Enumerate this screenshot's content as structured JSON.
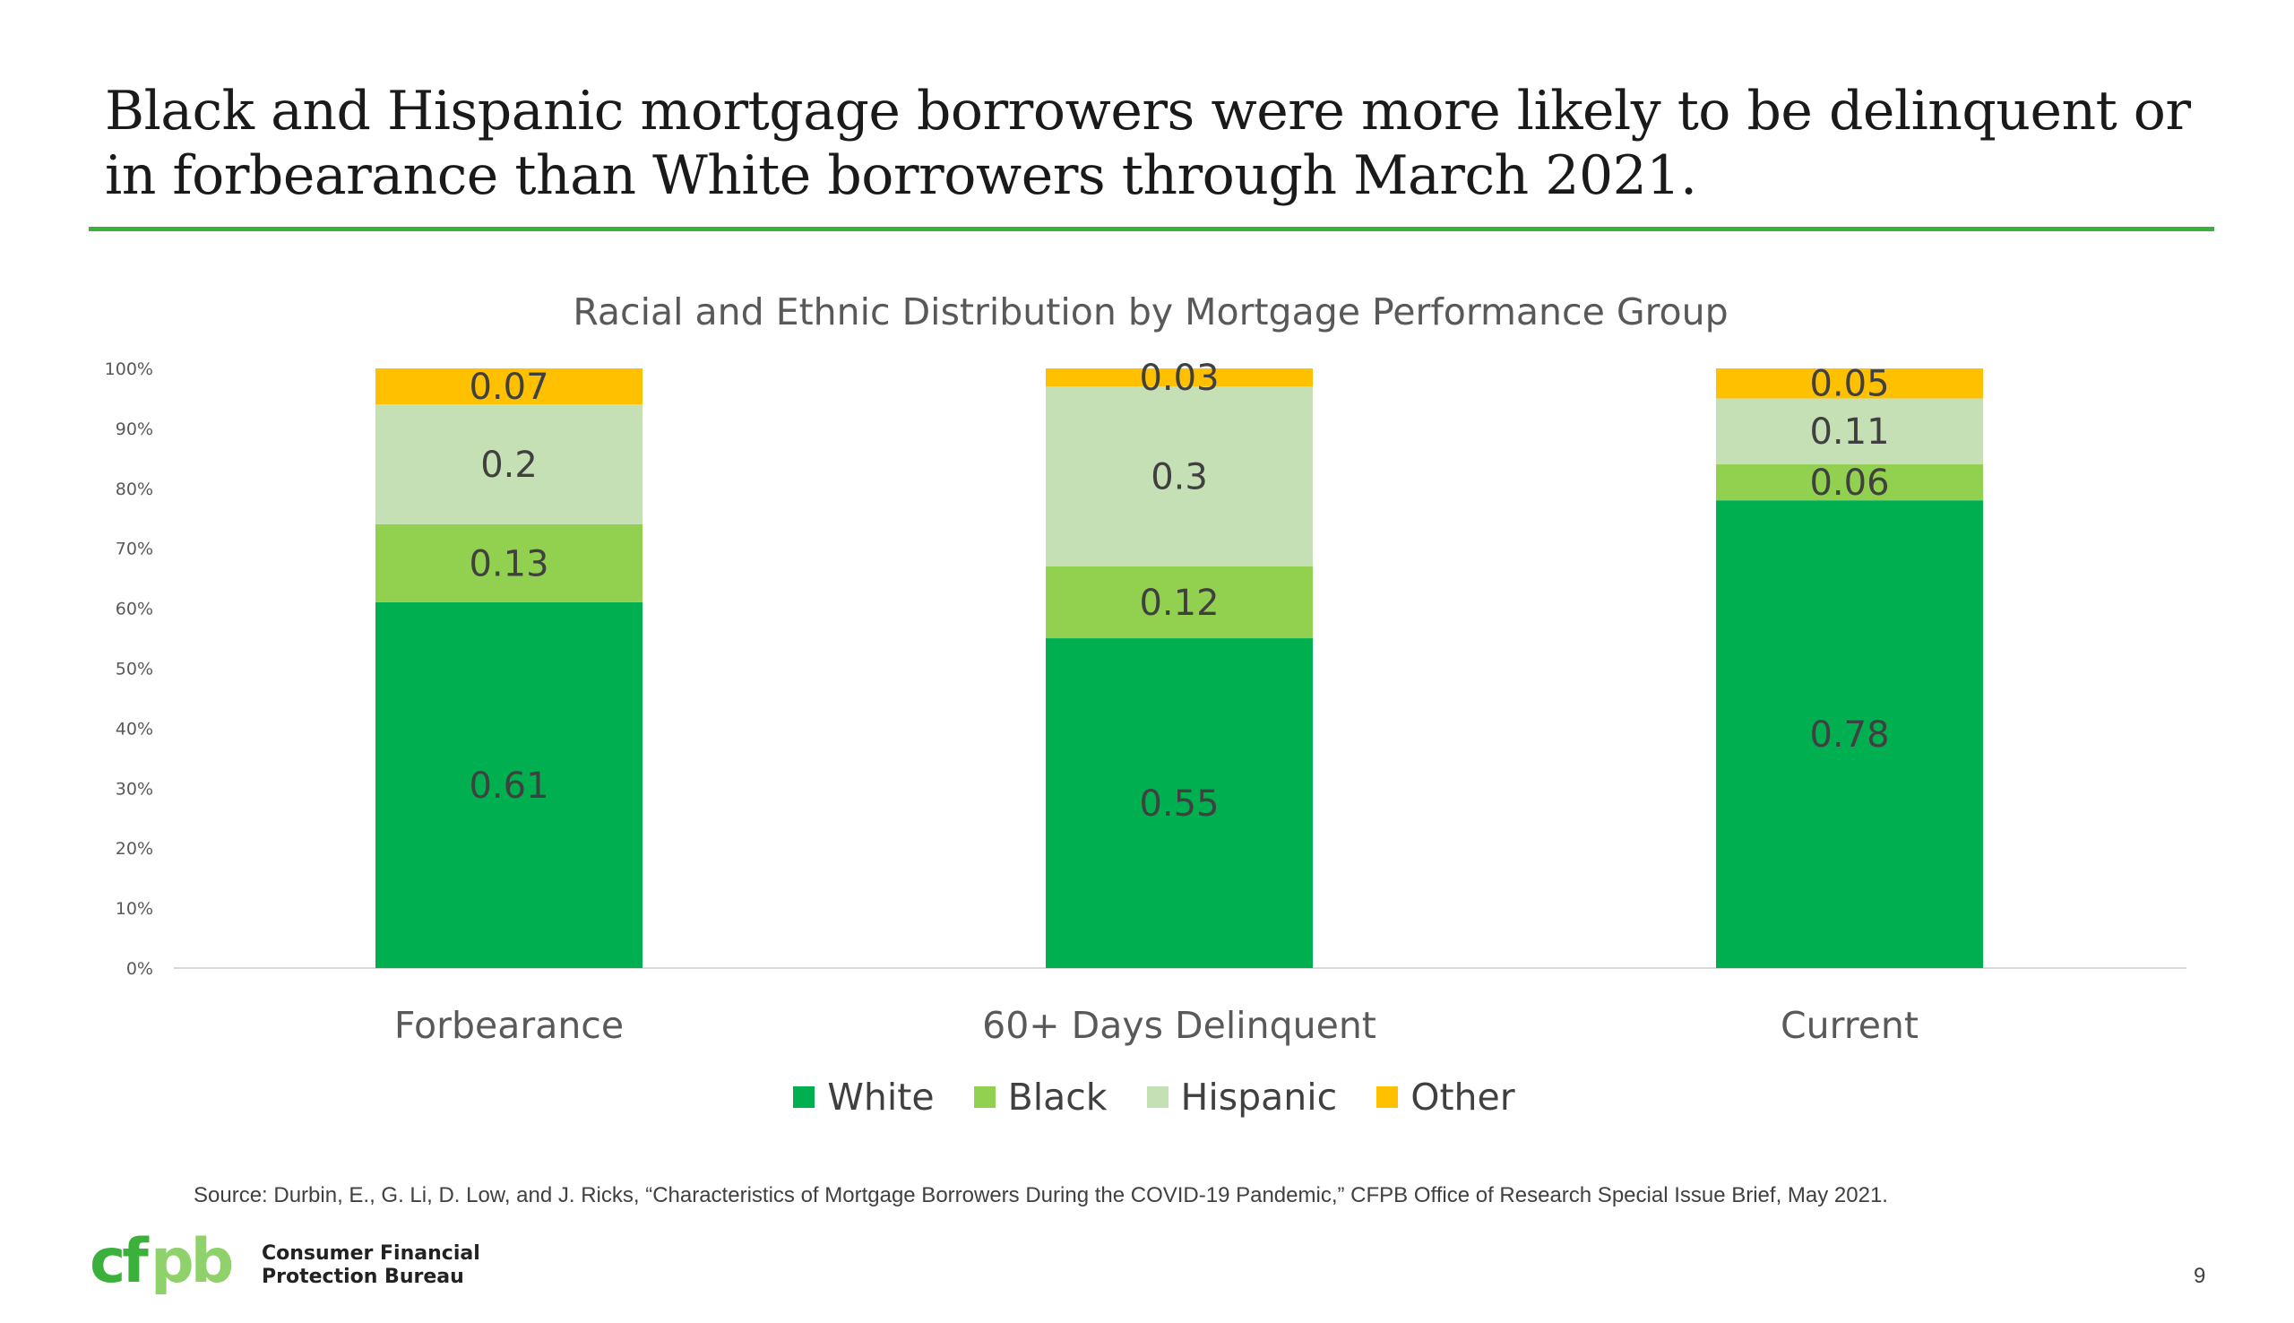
{
  "slide": {
    "title": "Black and Hispanic mortgage borrowers were more likely to be delinquent or in forbearance than White borrowers through March 2021.",
    "source": "Source: Durbin, E., G. Li, D. Low, and J. Ricks, “Characteristics of Mortgage Borrowers During the COVID-19 Pandemic,” CFPB Office of Research Special Issue Brief, May 2021.",
    "page_number": "9",
    "logo": {
      "mark": "cfpb",
      "line1": "Consumer Financial",
      "line2": "Protection Bureau"
    }
  },
  "chart_data": {
    "type": "bar",
    "stacked": true,
    "title": "Racial and Ethnic Distribution by Mortgage Performance Group",
    "xlabel": "",
    "ylabel": "",
    "categories": [
      "Forbearance",
      "60+ Days Delinquent",
      "Current"
    ],
    "yticks": [
      "0%",
      "10%",
      "20%",
      "30%",
      "40%",
      "50%",
      "60%",
      "70%",
      "80%",
      "90%",
      "100%"
    ],
    "ylim": [
      0,
      1
    ],
    "grid": false,
    "legend_position": "bottom",
    "series": [
      {
        "name": "White",
        "color": "#00b050",
        "values": [
          0.61,
          0.55,
          0.78
        ],
        "labels": [
          "0.61",
          "0.55",
          "0.78"
        ]
      },
      {
        "name": "Black",
        "color": "#92d050",
        "values": [
          0.13,
          0.12,
          0.06
        ],
        "labels": [
          "0.13",
          "0.12",
          "0.06"
        ]
      },
      {
        "name": "Hispanic",
        "color": "#c5e0b4",
        "values": [
          0.2,
          0.3,
          0.11
        ],
        "labels": [
          "0.2",
          "0.3",
          "0.11"
        ]
      },
      {
        "name": "Other",
        "color": "#ffc000",
        "values": [
          0.07,
          0.03,
          0.05
        ],
        "labels": [
          "0.07",
          "0.03",
          "0.05"
        ]
      }
    ]
  }
}
